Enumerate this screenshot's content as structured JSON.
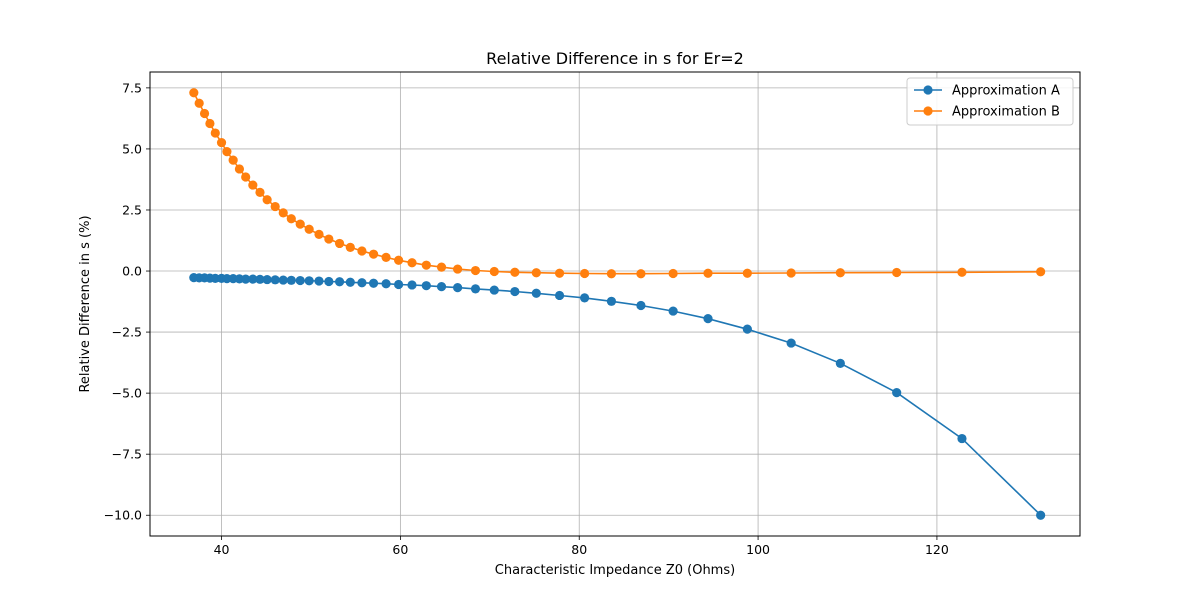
{
  "chart_data": {
    "type": "line",
    "title": "Relative Difference in s for Er=2",
    "xlabel": "Characteristic Impedance Z0 (Ohms)",
    "ylabel": "Relative Difference in s (%)",
    "xlim": [
      32,
      136
    ],
    "ylim": [
      -10.85,
      8.15
    ],
    "xticks": [
      40,
      60,
      80,
      100,
      120
    ],
    "yticks": [
      -10.0,
      -7.5,
      -5.0,
      -2.5,
      0.0,
      2.5,
      5.0,
      7.5
    ],
    "ytick_labels": [
      "−10.0",
      "−7.5",
      "−5.0",
      "−2.5",
      "0.0",
      "2.5",
      "5.0",
      "7.5"
    ],
    "grid": true,
    "legend_position": "top-right",
    "x": [
      36.9,
      37.5,
      38.1,
      38.7,
      39.3,
      40.0,
      40.6,
      41.3,
      42.0,
      42.7,
      43.5,
      44.3,
      45.1,
      46.0,
      46.9,
      47.8,
      48.8,
      49.8,
      50.9,
      52.0,
      53.2,
      54.4,
      55.7,
      57.0,
      58.4,
      59.8,
      61.3,
      62.9,
      64.6,
      66.4,
      68.4,
      70.5,
      72.8,
      75.2,
      77.8,
      80.6,
      83.6,
      86.9,
      90.5,
      94.4,
      98.8,
      103.7,
      109.2,
      115.5,
      122.8,
      131.6
    ],
    "series": [
      {
        "name": "Approximation A",
        "color": "#1f77b4",
        "values": [
          -0.27,
          -0.28,
          -0.28,
          -0.29,
          -0.3,
          -0.3,
          -0.31,
          -0.31,
          -0.32,
          -0.33,
          -0.33,
          -0.34,
          -0.35,
          -0.36,
          -0.37,
          -0.38,
          -0.39,
          -0.4,
          -0.41,
          -0.43,
          -0.44,
          -0.46,
          -0.48,
          -0.5,
          -0.52,
          -0.55,
          -0.57,
          -0.6,
          -0.64,
          -0.68,
          -0.73,
          -0.78,
          -0.84,
          -0.91,
          -1.0,
          -1.1,
          -1.24,
          -1.41,
          -1.64,
          -1.95,
          -2.38,
          -2.95,
          -3.78,
          -4.98,
          -6.86,
          -10.0
        ]
      },
      {
        "name": "Approximation B",
        "color": "#ff7f0e",
        "values": [
          7.3,
          6.87,
          6.45,
          6.04,
          5.65,
          5.26,
          4.89,
          4.54,
          4.18,
          3.85,
          3.52,
          3.22,
          2.92,
          2.64,
          2.38,
          2.14,
          1.92,
          1.71,
          1.5,
          1.31,
          1.13,
          0.97,
          0.82,
          0.69,
          0.56,
          0.44,
          0.34,
          0.24,
          0.16,
          0.08,
          0.02,
          -0.02,
          -0.05,
          -0.07,
          -0.09,
          -0.1,
          -0.11,
          -0.11,
          -0.1,
          -0.09,
          -0.09,
          -0.08,
          -0.07,
          -0.06,
          -0.05,
          -0.03
        ]
      }
    ]
  }
}
